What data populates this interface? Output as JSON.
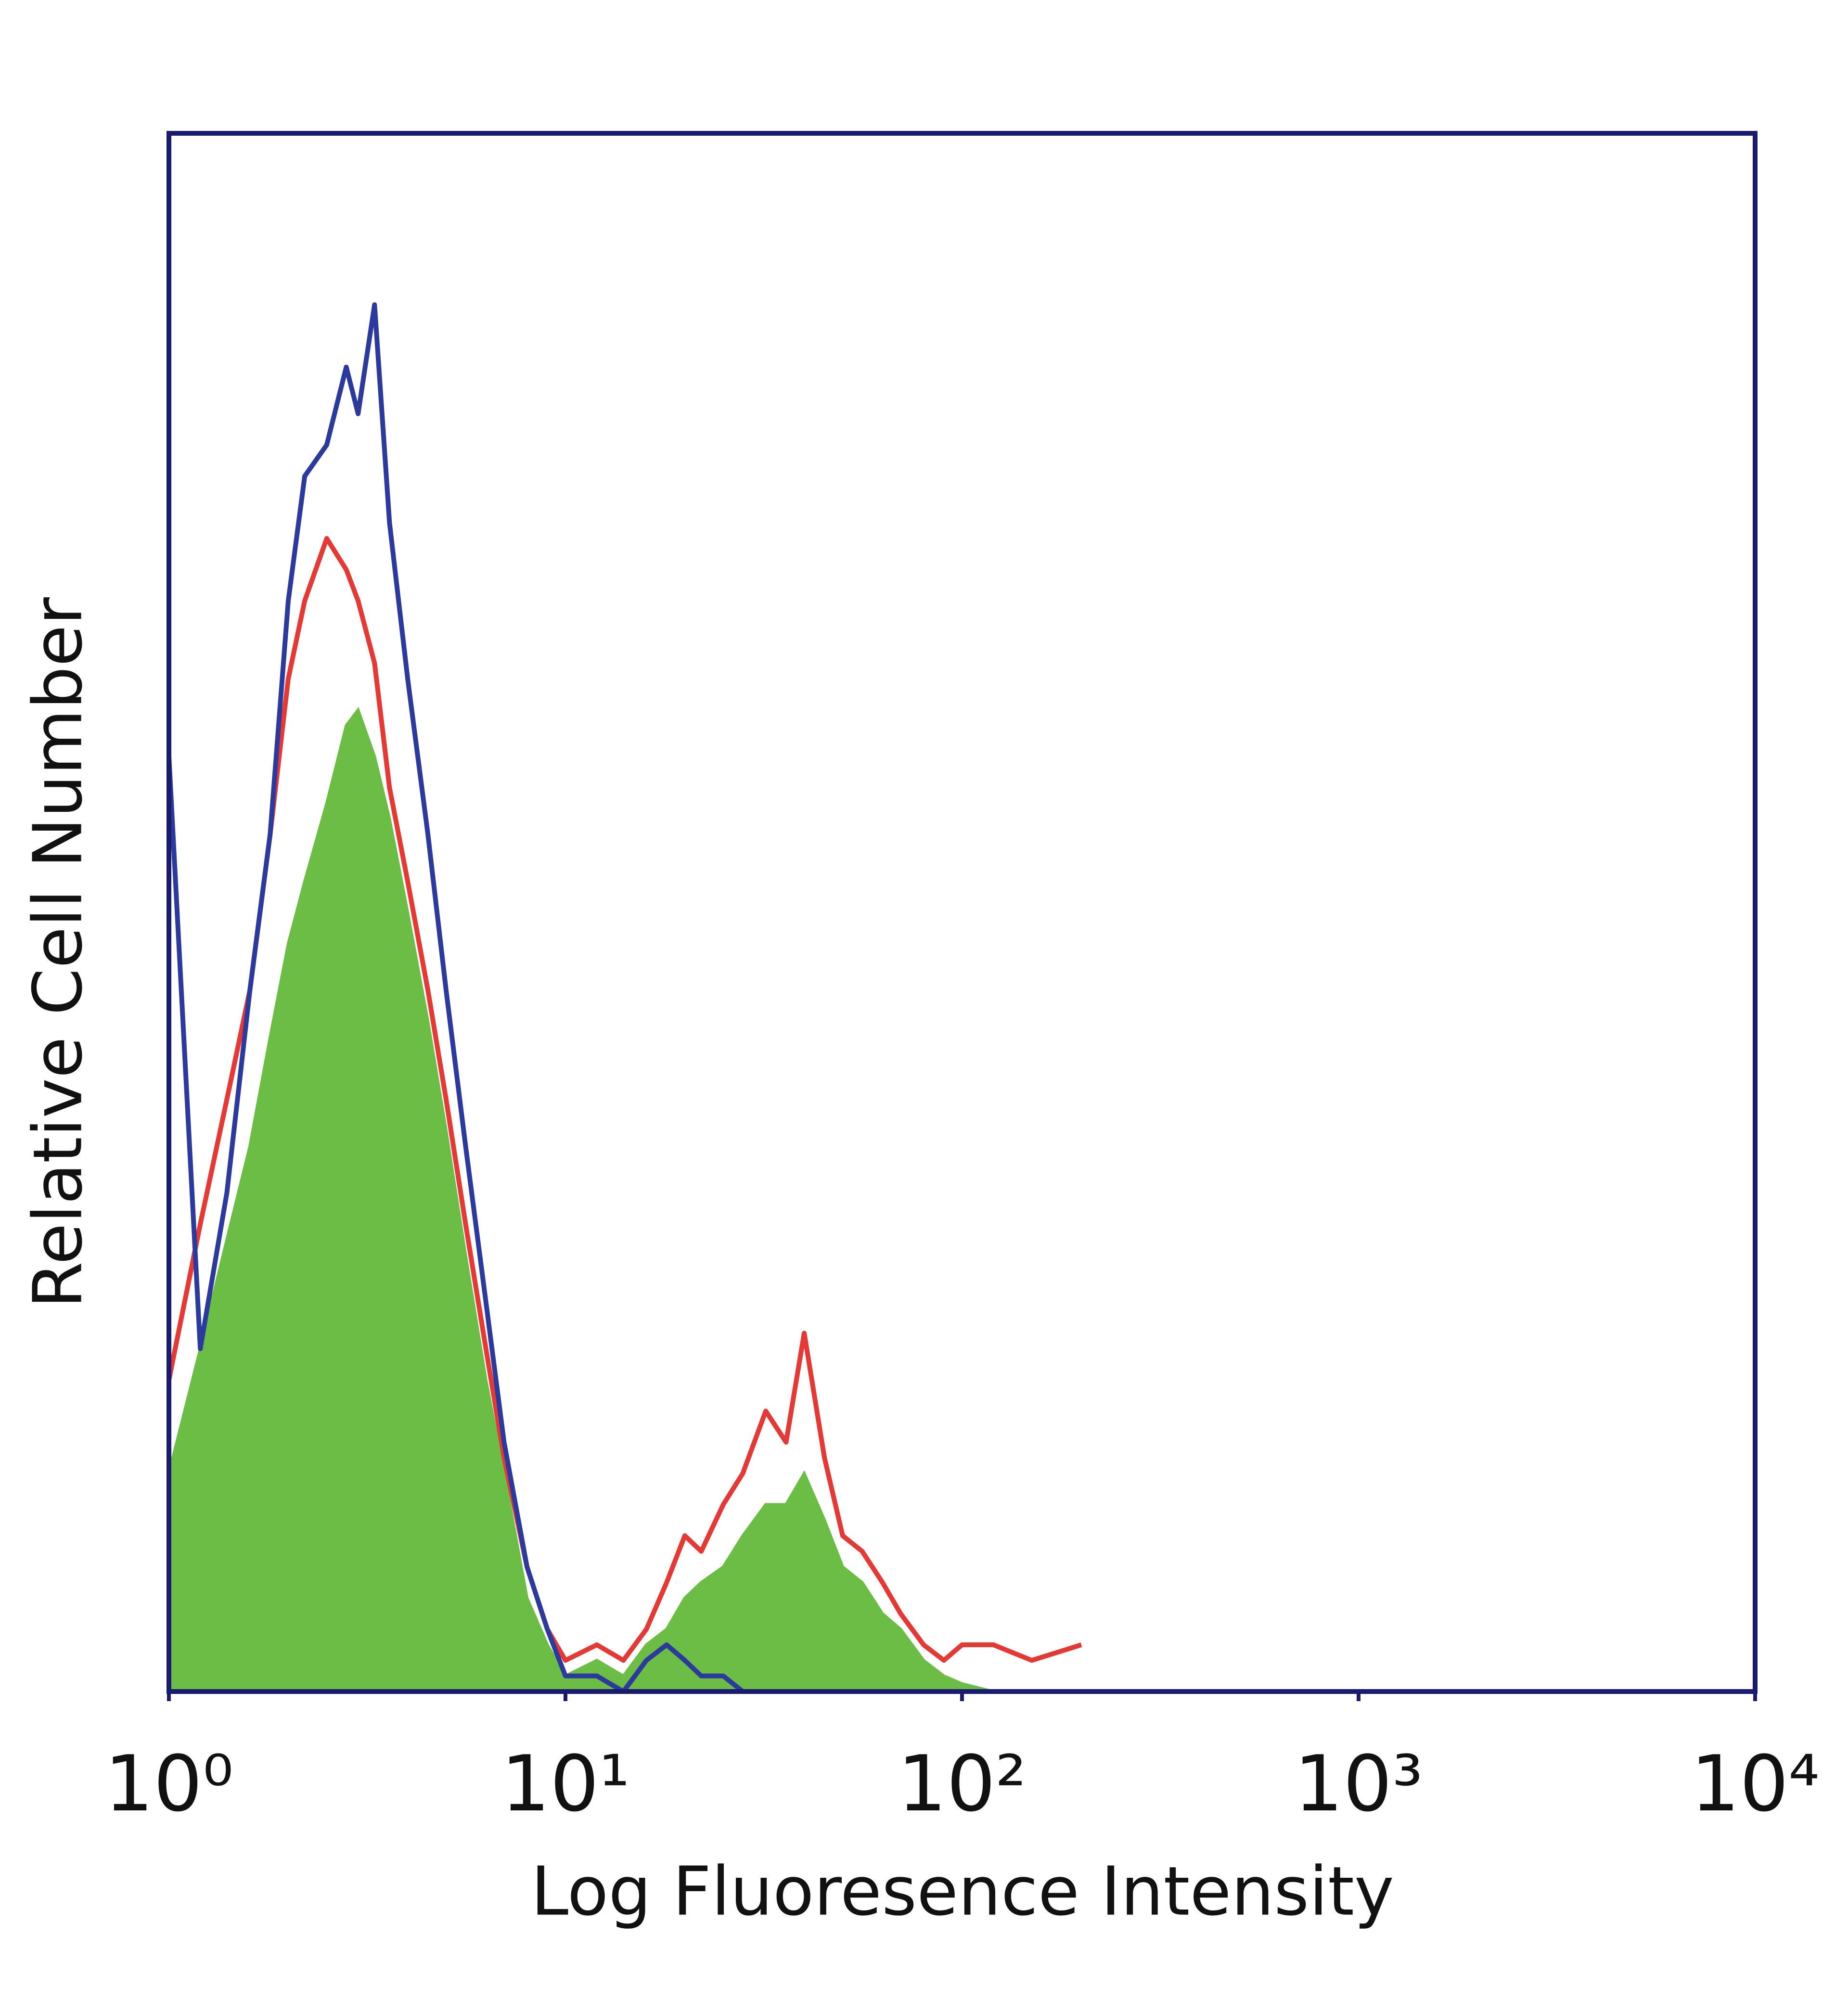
{
  "chart_data": {
    "type": "histogram",
    "xlabel": "Log Fluoresence Intensity",
    "ylabel": "Relative Cell Number",
    "xscale": "log",
    "x": [
      1,
      1.2,
      1.4,
      1.6,
      1.8,
      2,
      2.2,
      2.5,
      2.8,
      3,
      3.3,
      3.6,
      4,
      4.5,
      5,
      5.6,
      6.3,
      7,
      8,
      9,
      10,
      12,
      14,
      16,
      18,
      20,
      22,
      25,
      28,
      32,
      36,
      40,
      45,
      50,
      56,
      63,
      70,
      80,
      90,
      100,
      120,
      150,
      200
    ],
    "series": [
      {
        "color": "#6cbd45",
        "fill": true,
        "values": [
          14,
          22,
          29,
          35,
          42,
          48,
          52,
          57,
          62,
          63,
          60,
          56,
          50,
          43,
          36,
          28,
          20,
          14,
          6,
          3,
          1,
          2,
          1,
          3,
          4,
          6,
          7,
          8,
          10,
          12,
          12,
          14,
          11,
          8,
          7,
          5,
          4,
          2,
          1,
          0.5,
          0,
          0,
          0
        ]
      },
      {
        "color": "#e53935",
        "fill": false,
        "values": [
          20,
          30,
          38,
          45,
          55,
          65,
          70,
          74,
          72,
          70,
          66,
          58,
          52,
          45,
          38,
          30,
          22,
          15,
          8,
          4,
          2,
          3,
          2,
          4,
          7,
          10,
          9,
          12,
          14,
          18,
          16,
          23,
          15,
          10,
          9,
          7,
          5,
          3,
          2,
          3,
          3,
          2,
          3
        ]
      },
      {
        "color": "#2b3a9c",
        "fill": false,
        "values": [
          60,
          22,
          32,
          45,
          55,
          70,
          78,
          80,
          85,
          82,
          89,
          75,
          65,
          55,
          45,
          35,
          25,
          16,
          8,
          4,
          1,
          1,
          0,
          2,
          3,
          2,
          1,
          1,
          0,
          0,
          0,
          0,
          0,
          0,
          0,
          0,
          0,
          0,
          0,
          0,
          0,
          0,
          0
        ]
      }
    ],
    "xlim": [
      1,
      10000
    ],
    "ylim": [
      0,
      100
    ],
    "xticks": [
      {
        "value": 1,
        "label": "10⁰"
      },
      {
        "value": 10,
        "label": "10¹"
      },
      {
        "value": 100,
        "label": "10²"
      },
      {
        "value": 1000,
        "label": "10³"
      },
      {
        "value": 10000,
        "label": "10⁴"
      }
    ]
  }
}
